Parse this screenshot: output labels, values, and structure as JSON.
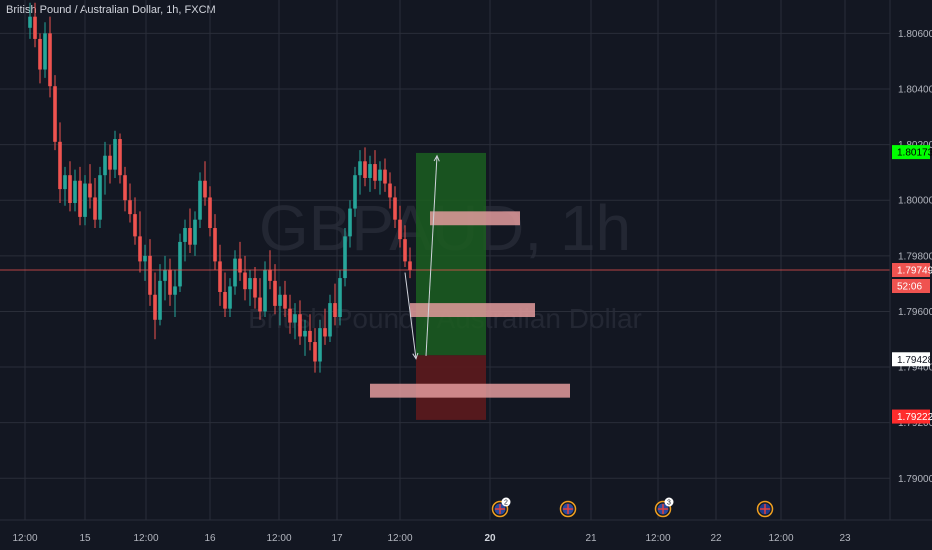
{
  "header": {
    "title": "British Pound / Australian Dollar, 1h, FXCM"
  },
  "watermark": {
    "symbol": "GBPAUD, 1h",
    "name": "British Pound / Australian Dollar"
  },
  "colors": {
    "background": "#131722",
    "grid": "#2a2e39",
    "up": "#26a69a",
    "down": "#ef5350",
    "target_zone": "#1b5e20",
    "stop_zone": "#5d1a1d",
    "zone_bar": "#e39b9c",
    "arrow": "#d1d4dc",
    "tag_target": "#00ff00",
    "tag_stop": "#ff2c2c",
    "tag_current": "#ef5350"
  },
  "chart_data": {
    "type": "candlestick",
    "title": "British Pound / Australian Dollar, 1h, FXCM",
    "symbol": "GBPAUD",
    "timeframe": "1h",
    "ylim": [
      1.7885,
      1.8072
    ],
    "yticks": [
      "1.80600",
      "1.80400",
      "1.80200",
      "1.80000",
      "1.79800",
      "1.79600",
      "1.79400",
      "1.79200",
      "1.79000"
    ],
    "xticks": [
      "12:00",
      "15",
      "12:00",
      "16",
      "12:00",
      "17",
      "12:00",
      "20",
      "21",
      "12:00",
      "22",
      "12:00",
      "23"
    ],
    "xticks_bold": [
      "20"
    ],
    "grid": true,
    "price_tags": [
      {
        "label": "1.80173",
        "value": 1.80173,
        "kind": "target"
      },
      {
        "label": "1.79749",
        "value": 1.79749,
        "kind": "current"
      },
      {
        "label": "52:06",
        "kind": "countdown"
      },
      {
        "label": "1.79428",
        "value": 1.79428,
        "kind": "entry"
      },
      {
        "label": "1.79222",
        "value": 1.79222,
        "kind": "stop"
      }
    ],
    "trade": {
      "entry": 1.79428,
      "target": 1.80173,
      "stop": 1.79222
    },
    "zones": [
      {
        "y1": 1.7996,
        "y2": 1.7991,
        "from_bar": 80,
        "to_bar": 98
      },
      {
        "y1": 1.7963,
        "y2": 1.7958,
        "from_bar": 76,
        "to_bar": 101
      },
      {
        "y1": 1.7934,
        "y2": 1.7929,
        "from_bar": 68,
        "to_bar": 108
      }
    ],
    "events": [
      {
        "flag": "GB",
        "badge": "2"
      },
      {
        "flag": "GB",
        "badge": ""
      },
      {
        "flag": "GB",
        "badge": "3"
      },
      {
        "flag": "AU",
        "badge": ""
      }
    ],
    "candles": [
      [
        1.8062,
        1.8071,
        1.8058,
        1.8066
      ],
      [
        1.8066,
        1.8071,
        1.8055,
        1.8058
      ],
      [
        1.8058,
        1.806,
        1.8042,
        1.8047
      ],
      [
        1.8047,
        1.8064,
        1.8044,
        1.806
      ],
      [
        1.806,
        1.8066,
        1.8037,
        1.8041
      ],
      [
        1.8041,
        1.8045,
        1.8018,
        1.8021
      ],
      [
        1.8021,
        1.8028,
        1.7999,
        1.8004
      ],
      [
        1.8004,
        1.8012,
        1.7998,
        1.8009
      ],
      [
        1.8009,
        1.8014,
        1.7996,
        1.7999
      ],
      [
        1.7999,
        1.8011,
        1.7996,
        1.8007
      ],
      [
        1.8007,
        1.8012,
        1.7991,
        1.7994
      ],
      [
        1.7994,
        1.8009,
        1.7991,
        1.8006
      ],
      [
        1.8006,
        1.8013,
        1.7997,
        1.8001
      ],
      [
        1.8001,
        1.8008,
        1.799,
        1.7993
      ],
      [
        1.7993,
        1.8012,
        1.799,
        1.8009
      ],
      [
        1.8009,
        1.8021,
        1.8002,
        1.8016
      ],
      [
        1.8016,
        1.802,
        1.8006,
        1.8011
      ],
      [
        1.8011,
        1.8025,
        1.8008,
        1.8022
      ],
      [
        1.8022,
        1.8024,
        1.8006,
        1.8009
      ],
      [
        1.8009,
        1.8012,
        1.7996,
        1.8
      ],
      [
        1.8,
        1.8006,
        1.7992,
        1.7995
      ],
      [
        1.7995,
        1.8001,
        1.7984,
        1.7987
      ],
      [
        1.7987,
        1.7996,
        1.7974,
        1.7978
      ],
      [
        1.7978,
        1.7984,
        1.7971,
        1.798
      ],
      [
        1.798,
        1.7986,
        1.7962,
        1.7966
      ],
      [
        1.7966,
        1.7974,
        1.795,
        1.7957
      ],
      [
        1.7957,
        1.7977,
        1.7955,
        1.7971
      ],
      [
        1.7971,
        1.798,
        1.7964,
        1.7975
      ],
      [
        1.7975,
        1.7979,
        1.7962,
        1.7966
      ],
      [
        1.7966,
        1.7975,
        1.7958,
        1.7969
      ],
      [
        1.7969,
        1.7988,
        1.7967,
        1.7985
      ],
      [
        1.7985,
        1.7993,
        1.7978,
        1.799
      ],
      [
        1.799,
        1.7997,
        1.7981,
        1.7984
      ],
      [
        1.7984,
        1.7996,
        1.798,
        1.7993
      ],
      [
        1.7993,
        1.801,
        1.799,
        1.8007
      ],
      [
        1.8007,
        1.8014,
        1.7998,
        1.8001
      ],
      [
        1.8001,
        1.8005,
        1.7987,
        1.799
      ],
      [
        1.799,
        1.7995,
        1.7975,
        1.7978
      ],
      [
        1.7978,
        1.7984,
        1.7962,
        1.7967
      ],
      [
        1.7967,
        1.7974,
        1.7958,
        1.7961
      ],
      [
        1.7961,
        1.7972,
        1.7958,
        1.7969
      ],
      [
        1.7969,
        1.7982,
        1.7966,
        1.7979
      ],
      [
        1.7979,
        1.7985,
        1.7971,
        1.7974
      ],
      [
        1.7974,
        1.798,
        1.7964,
        1.7968
      ],
      [
        1.7968,
        1.7975,
        1.7962,
        1.7972
      ],
      [
        1.7972,
        1.7976,
        1.7961,
        1.7965
      ],
      [
        1.7965,
        1.7972,
        1.7957,
        1.796
      ],
      [
        1.796,
        1.7978,
        1.7958,
        1.7975
      ],
      [
        1.7975,
        1.7982,
        1.7968,
        1.7971
      ],
      [
        1.7971,
        1.7977,
        1.7959,
        1.7962
      ],
      [
        1.7962,
        1.7969,
        1.7955,
        1.7966
      ],
      [
        1.7966,
        1.7971,
        1.7958,
        1.7961
      ],
      [
        1.7961,
        1.7966,
        1.7952,
        1.7956
      ],
      [
        1.7956,
        1.7963,
        1.795,
        1.7959
      ],
      [
        1.7959,
        1.7964,
        1.7948,
        1.7951
      ],
      [
        1.7951,
        1.7957,
        1.7944,
        1.7953
      ],
      [
        1.7953,
        1.7959,
        1.7946,
        1.7949
      ],
      [
        1.7949,
        1.7954,
        1.7938,
        1.7942
      ],
      [
        1.7942,
        1.7957,
        1.7938,
        1.7954
      ],
      [
        1.7954,
        1.7961,
        1.7948,
        1.7951
      ],
      [
        1.7951,
        1.7966,
        1.7949,
        1.7963
      ],
      [
        1.7963,
        1.797,
        1.7955,
        1.7958
      ],
      [
        1.7958,
        1.7975,
        1.7955,
        1.7972
      ],
      [
        1.7972,
        1.799,
        1.7969,
        1.7987
      ],
      [
        1.7987,
        1.8,
        1.7983,
        1.7997
      ],
      [
        1.7997,
        1.8012,
        1.7994,
        1.8009
      ],
      [
        1.8009,
        1.8018,
        1.8002,
        1.8014
      ],
      [
        1.8014,
        1.8019,
        1.8005,
        1.8008
      ],
      [
        1.8008,
        1.8016,
        1.8003,
        1.8013
      ],
      [
        1.8013,
        1.8018,
        1.8004,
        1.8007
      ],
      [
        1.8007,
        1.8014,
        1.8002,
        1.8011
      ],
      [
        1.8011,
        1.8015,
        1.8003,
        1.8006
      ],
      [
        1.8006,
        1.801,
        1.7997,
        1.8001
      ],
      [
        1.8001,
        1.8005,
        1.799,
        1.7993
      ],
      [
        1.7993,
        1.7998,
        1.7983,
        1.7986
      ],
      [
        1.7986,
        1.7991,
        1.7976,
        1.7978
      ],
      [
        1.7978,
        1.7983,
        1.7972,
        1.7975
      ]
    ]
  }
}
